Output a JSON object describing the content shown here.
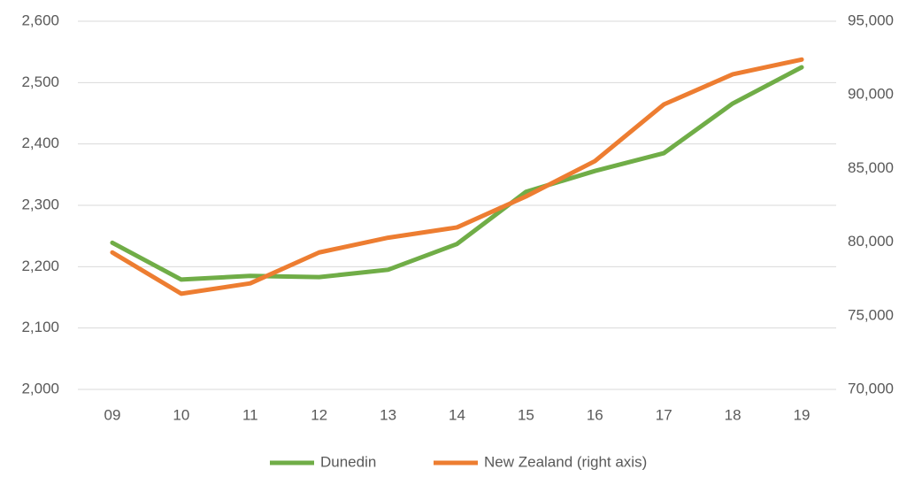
{
  "chart_data": {
    "type": "line",
    "categories": [
      "09",
      "10",
      "11",
      "12",
      "13",
      "14",
      "15",
      "16",
      "17",
      "18",
      "19"
    ],
    "series": [
      {
        "name": "Dunedin",
        "color": "#70ad47",
        "values": [
          2239,
          2179,
          2185,
          2183,
          2195,
          2237,
          2322,
          2356,
          2385,
          2466,
          2525
        ]
      },
      {
        "name": "New Zealand (right axis)",
        "color": "#ed7d31",
        "axis": "y2",
        "values": [
          79300,
          76500,
          77200,
          79300,
          80300,
          81000,
          83100,
          85500,
          89350,
          91400,
          92400
        ]
      }
    ],
    "ylim": [
      2000,
      2600
    ],
    "yticks": [
      {
        "value": 2000,
        "label": "2,000"
      },
      {
        "value": 2100,
        "label": "2,100"
      },
      {
        "value": 2200,
        "label": "2,200"
      },
      {
        "value": 2300,
        "label": "2,300"
      },
      {
        "value": 2400,
        "label": "2,400"
      },
      {
        "value": 2500,
        "label": "2,500"
      },
      {
        "value": 2600,
        "label": "2,600"
      }
    ],
    "y2lim": [
      70000,
      95000
    ],
    "y2ticks": [
      {
        "value": 70000,
        "label": "70,000"
      },
      {
        "value": 75000,
        "label": "75,000"
      },
      {
        "value": 80000,
        "label": "80,000"
      },
      {
        "value": 85000,
        "label": "85,000"
      },
      {
        "value": 90000,
        "label": "90,000"
      },
      {
        "value": 95000,
        "label": "95,000"
      }
    ],
    "grid": true,
    "legend": "bottom"
  }
}
